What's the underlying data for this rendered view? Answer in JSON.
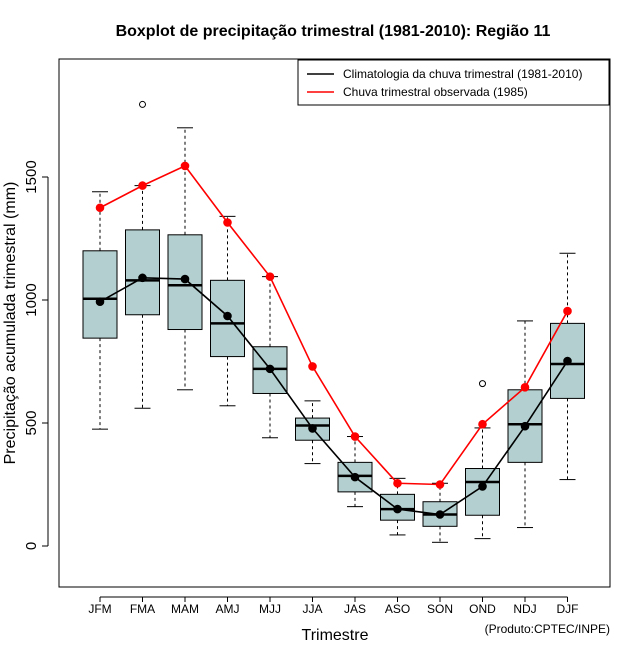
{
  "chart_data": {
    "type": "boxplot",
    "title": "Boxplot de precipitação trimestral (1981-2010): Região 11",
    "xlabel": "Trimestre",
    "ylabel": "Precipitação acumulada trimestral (mm)",
    "ylim": [
      -150,
      1970
    ],
    "yticks": [
      0,
      500,
      1000,
      1500
    ],
    "ytick_labels": [
      "0",
      "500",
      "1000",
      "1500"
    ],
    "credit": "(Produto:CPTEC/INPE)",
    "colors": {
      "box_fill": "#b3cfcf",
      "climatology": "#000000",
      "observed": "#ff0000"
    },
    "categories": [
      "JFM",
      "FMA",
      "MAM",
      "AMJ",
      "MJJ",
      "JJA",
      "JAS",
      "ASO",
      "SON",
      "OND",
      "NDJ",
      "DJF"
    ],
    "boxes": [
      {
        "whisker_low": 475,
        "q1": 845,
        "median": 1005,
        "q3": 1200,
        "whisker_high": 1440,
        "outliers": []
      },
      {
        "whisker_low": 560,
        "q1": 940,
        "median": 1080,
        "q3": 1285,
        "whisker_high": 1465,
        "outliers": [
          1795
        ]
      },
      {
        "whisker_low": 635,
        "q1": 880,
        "median": 1060,
        "q3": 1265,
        "whisker_high": 1700,
        "outliers": []
      },
      {
        "whisker_low": 570,
        "q1": 770,
        "median": 905,
        "q3": 1080,
        "whisker_high": 1340,
        "outliers": []
      },
      {
        "whisker_low": 440,
        "q1": 620,
        "median": 720,
        "q3": 810,
        "whisker_high": 1095,
        "outliers": []
      },
      {
        "whisker_low": 335,
        "q1": 430,
        "median": 490,
        "q3": 520,
        "whisker_high": 590,
        "outliers": []
      },
      {
        "whisker_low": 160,
        "q1": 220,
        "median": 285,
        "q3": 340,
        "whisker_high": 445,
        "outliers": []
      },
      {
        "whisker_low": 45,
        "q1": 105,
        "median": 150,
        "q3": 210,
        "whisker_high": 275,
        "outliers": []
      },
      {
        "whisker_low": 15,
        "q1": 80,
        "median": 128,
        "q3": 180,
        "whisker_high": 255,
        "outliers": []
      },
      {
        "whisker_low": 30,
        "q1": 125,
        "median": 260,
        "q3": 315,
        "whisker_high": 480,
        "outliers": [
          660
        ]
      },
      {
        "whisker_low": 75,
        "q1": 340,
        "median": 495,
        "q3": 635,
        "whisker_high": 915,
        "outliers": []
      },
      {
        "whisker_low": 270,
        "q1": 600,
        "median": 740,
        "q3": 905,
        "whisker_high": 1190,
        "outliers": []
      }
    ],
    "series": [
      {
        "name": "Climatologia da chuva trimestral (1981-2010)",
        "color": "#000000",
        "values": [
          993,
          1090,
          1085,
          935,
          720,
          478,
          280,
          150,
          128,
          242,
          487,
          752
        ]
      },
      {
        "name": "Chuva trimestral observada (1985)",
        "color": "#ff0000",
        "values": [
          1375,
          1465,
          1545,
          1315,
          1095,
          730,
          445,
          255,
          250,
          495,
          645,
          955
        ]
      }
    ],
    "legend": {
      "position": "top-right"
    }
  }
}
